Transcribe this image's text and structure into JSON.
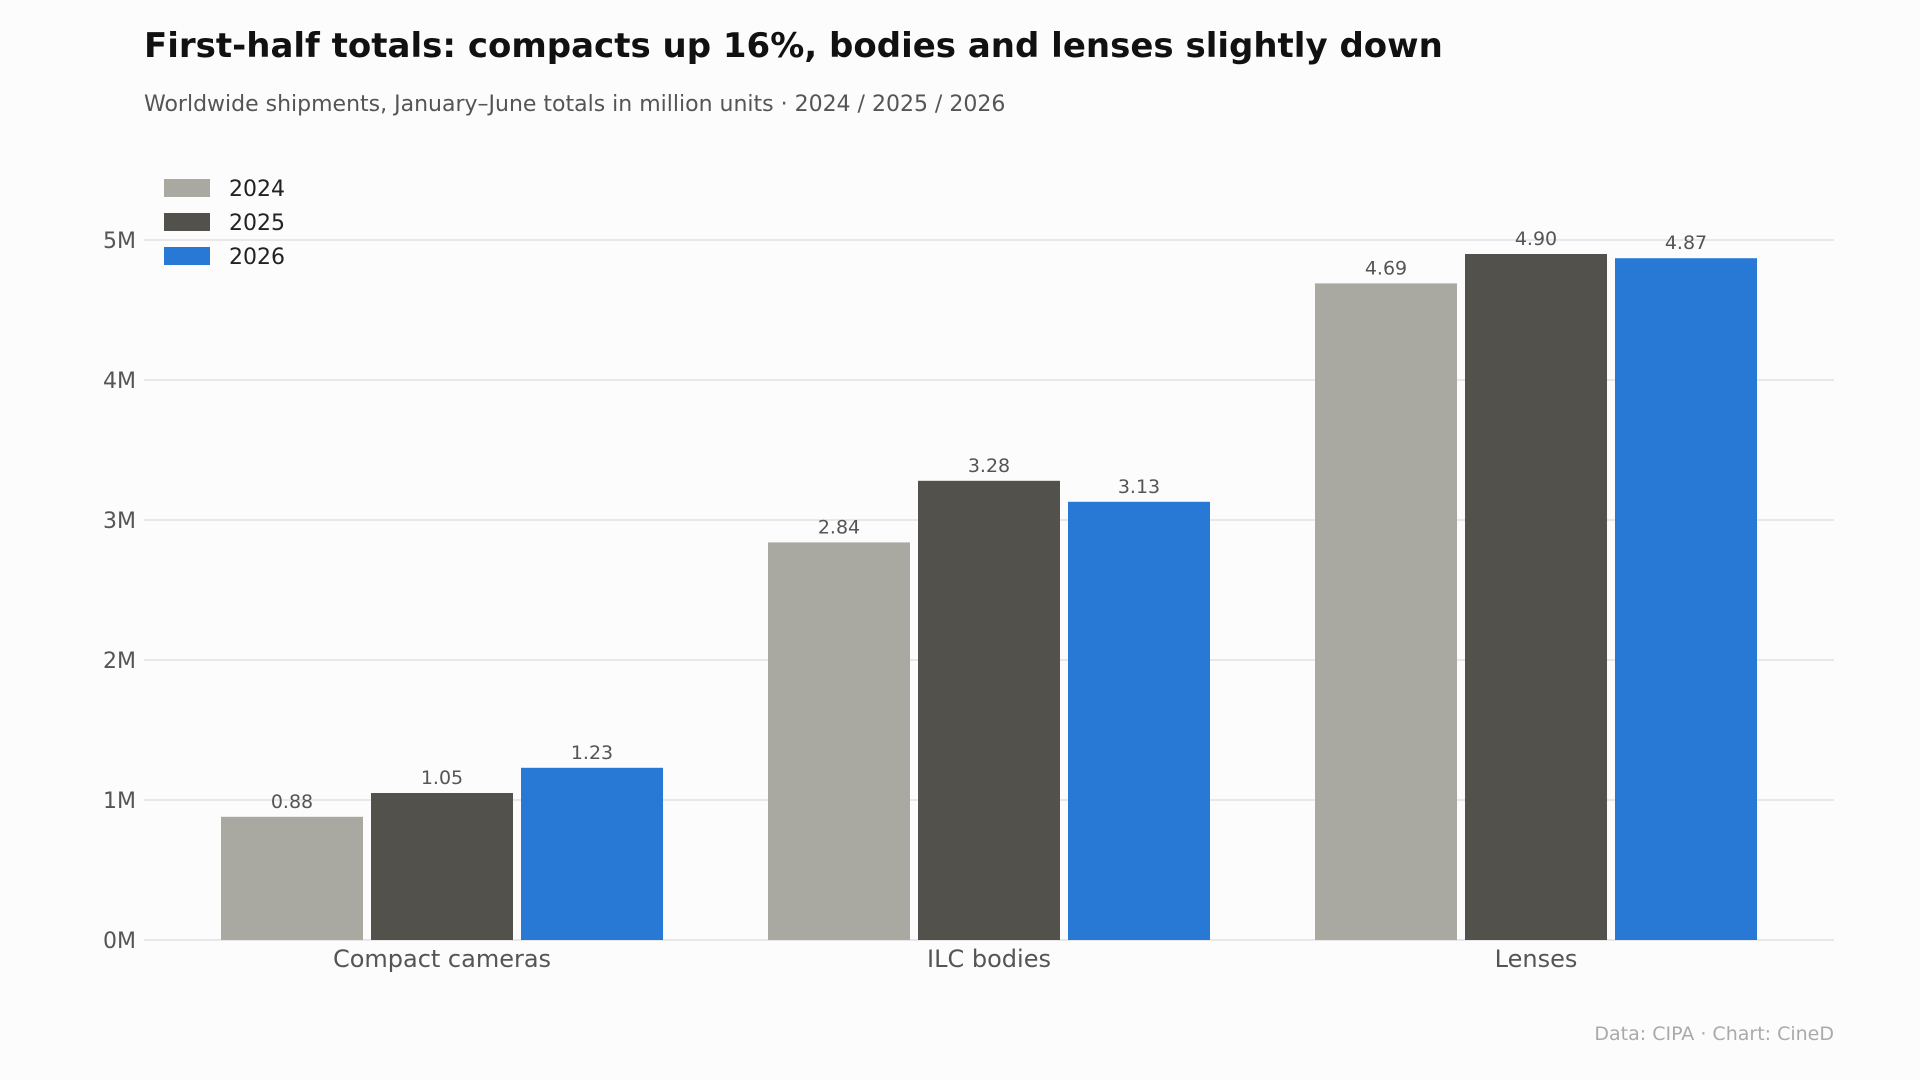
{
  "header": {
    "title": "First-half totals: compacts up 16%, bodies and lenses slightly down",
    "subtitle": "Worldwide shipments, January–June totals in million units · 2024 / 2025 / 2026"
  },
  "footer": {
    "source_text": "Data: CIPA  ·  Chart: CineD"
  },
  "colors": {
    "background": "#fcfcfc",
    "gridline": "#e8e8e8",
    "series_2024": "#a9a9a1",
    "series_2025": "#52514c",
    "series_2026": "#2878d6"
  },
  "chart_data": {
    "type": "bar",
    "title": "First-half totals: compacts up 16%, bodies and lenses slightly down",
    "subtitle": "Worldwide shipments, January–June totals in million units · 2024 / 2025 / 2026",
    "categories": [
      "Compact cameras",
      "ILC bodies",
      "Lenses"
    ],
    "series": [
      {
        "name": "2024",
        "values": [
          0.88,
          2.84,
          4.69
        ],
        "labels": [
          "0.88",
          "2.84",
          "4.69"
        ],
        "color": "#a9a9a1"
      },
      {
        "name": "2025",
        "values": [
          1.05,
          3.28,
          4.9
        ],
        "labels": [
          "1.05",
          "3.28",
          "4.90"
        ],
        "color": "#52514c"
      },
      {
        "name": "2026",
        "values": [
          1.23,
          3.13,
          4.87
        ],
        "labels": [
          "1.23",
          "3.13",
          "4.87"
        ],
        "color": "#2878d6"
      }
    ],
    "yticks": [
      0,
      1,
      2,
      3,
      4,
      5
    ],
    "ytick_labels": [
      "0M",
      "1M",
      "2M",
      "3M",
      "4M",
      "5M"
    ],
    "ylim": [
      0,
      5.25
    ],
    "grid": true,
    "legend_position": "top-left"
  }
}
